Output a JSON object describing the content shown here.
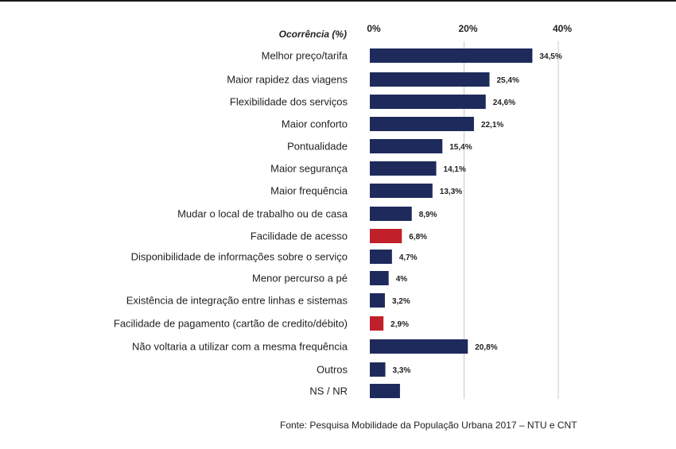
{
  "chart_data": {
    "type": "bar",
    "orientation": "horizontal",
    "ylabel": "Ocorrência (%)",
    "xlim": [
      0,
      40
    ],
    "ticks": [
      0,
      20,
      40
    ],
    "tick_labels": [
      "0%",
      "20%",
      "40%"
    ],
    "grid": true,
    "categories": [
      "Melhor preço/tarifa",
      "Maior rapidez das viagens",
      "Flexibilidade dos serviços",
      "Maior conforto",
      "Pontualidade",
      "Maior segurança",
      "Maior frequência",
      "Mudar o local de trabalho ou de casa",
      "Facilidade de acesso",
      "Disponibilidade de informações sobre o serviço",
      "Menor percurso a pé",
      "Existência de integração entre linhas e sistemas",
      "Facilidade de pagamento (cartão de credito/débito)",
      "Não voltaria a utilizar com a mesma frequência",
      "Outros",
      "NS / NR"
    ],
    "values": [
      34.5,
      25.4,
      24.6,
      22.1,
      15.4,
      14.1,
      13.3,
      8.9,
      6.8,
      4.7,
      4.0,
      3.2,
      2.9,
      20.8,
      3.3,
      6.4
    ],
    "value_labels": [
      "34,5%",
      "25,4%",
      "24,6%",
      "22,1%",
      "15,4%",
      "14,1%",
      "13,3%",
      "8,9%",
      "6,8%",
      "4,7%",
      "4%",
      "3,2%",
      "2,9%",
      "20,8%",
      "3,3%",
      ""
    ],
    "highlighted": [
      false,
      false,
      false,
      false,
      false,
      false,
      false,
      false,
      true,
      false,
      false,
      false,
      true,
      false,
      false,
      false
    ]
  },
  "colors": {
    "bar": "#1f2a5c",
    "highlight": "#c0202a",
    "grid": "#c8c8c8"
  },
  "source": "Fonte: Pesquisa Mobilidade da População Urbana 2017 – NTU e  CNT"
}
